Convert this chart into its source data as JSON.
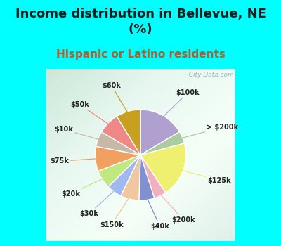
{
  "title": "Income distribution in Bellevue, NE\n(%)",
  "subtitle": "Hispanic or Latino residents",
  "background_color": "#00FFFF",
  "title_color": "#1a1a1a",
  "subtitle_color": "#b06030",
  "watermark": "  City-Data.com",
  "labels": [
    "$100k",
    "> $200k",
    "$125k",
    "$200k",
    "$40k",
    "$150k",
    "$30k",
    "$20k",
    "$75k",
    "$10k",
    "$50k",
    "$60k"
  ],
  "values": [
    15,
    4,
    18,
    4,
    5,
    6,
    5,
    6,
    8,
    5,
    7,
    8
  ],
  "colors": [
    "#b0a0d0",
    "#aacca0",
    "#f0f070",
    "#f0b0c0",
    "#8090d0",
    "#f0c8a0",
    "#a0b8f0",
    "#c0e880",
    "#f0a060",
    "#c8b8a8",
    "#f08888",
    "#c8a020"
  ],
  "title_fontsize": 13,
  "subtitle_fontsize": 11
}
